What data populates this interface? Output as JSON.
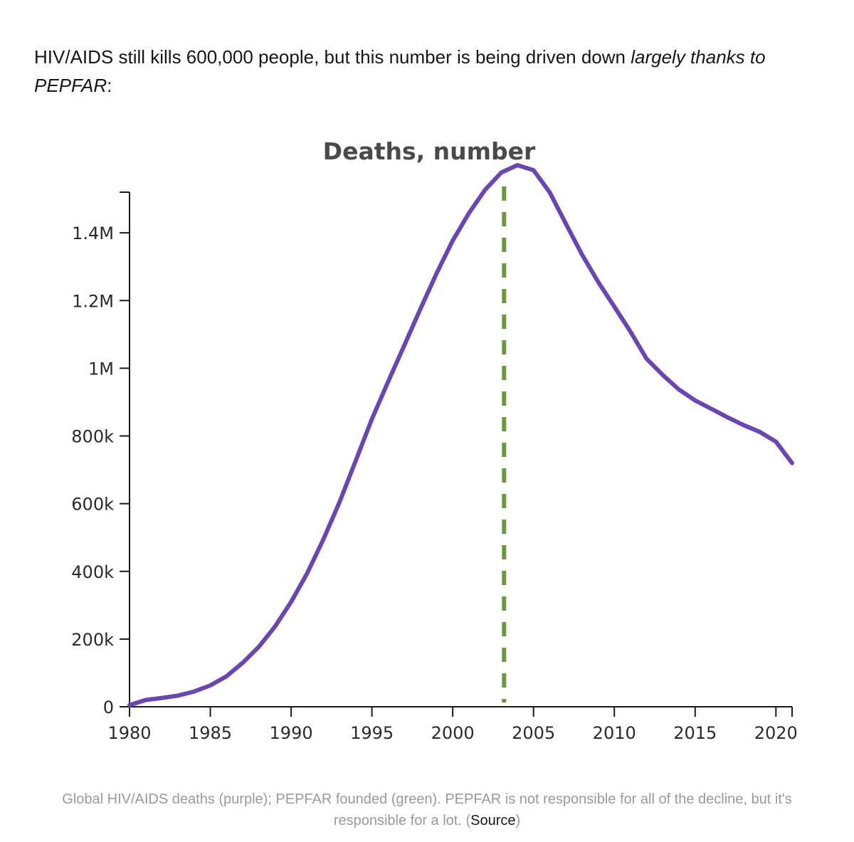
{
  "intro": {
    "text_before": "HIV/AIDS still kills 600,000 people, but this number is being driven down ",
    "text_italic": "largely thanks to PEPFAR",
    "text_after": ":"
  },
  "chart_data": {
    "type": "line",
    "title": "Deaths, number",
    "xlabel": "",
    "ylabel": "",
    "xlim": [
      1980,
      2021
    ],
    "ylim": [
      0,
      1600000
    ],
    "x_ticks": [
      1980,
      1985,
      1990,
      1995,
      2000,
      2005,
      2010,
      2015,
      2020
    ],
    "x_tick_labels": [
      "1980",
      "1985",
      "1990",
      "1995",
      "2000",
      "2005",
      "2010",
      "2015",
      "2020"
    ],
    "y_ticks": [
      0,
      200000,
      400000,
      600000,
      800000,
      1000000,
      1200000,
      1400000
    ],
    "y_tick_labels": [
      "0",
      "200k",
      "400k",
      "600k",
      "800k",
      "1M",
      "1.2M",
      "1.4M"
    ],
    "grid": false,
    "series": [
      {
        "color": "#6a46b0",
        "x": [
          1980,
          1981,
          1982,
          1983,
          1984,
          1985,
          1986,
          1987,
          1988,
          1989,
          1990,
          1991,
          1992,
          1993,
          1994,
          1995,
          1996,
          1997,
          1998,
          1999,
          2000,
          2001,
          2002,
          2003,
          2004,
          2005,
          2006,
          2007,
          2008,
          2009,
          2010,
          2011,
          2012,
          2013,
          2014,
          2015,
          2016,
          2017,
          2018,
          2019,
          2020,
          2021
        ],
        "y": [
          5000,
          20000,
          26000,
          33000,
          45000,
          63000,
          90000,
          130000,
          177000,
          237000,
          310000,
          395000,
          495000,
          605000,
          727000,
          850000,
          960000,
          1067000,
          1175000,
          1280000,
          1377000,
          1458000,
          1527000,
          1578000,
          1600000,
          1585000,
          1520000,
          1427000,
          1336000,
          1255000,
          1182000,
          1108000,
          1028000,
          980000,
          937000,
          905000,
          880000,
          855000,
          832000,
          812000,
          783000,
          720000
        ]
      }
    ],
    "marker": {
      "x": 2003,
      "color": "#6a9a3c",
      "style": "dashed"
    }
  },
  "caption": {
    "text_before": "Global HIV/AIDS deaths (purple); PEPFAR founded (green). PEPFAR is not responsible for all of the decline, but it's responsible for a lot. (",
    "source_label": "Source",
    "text_after": ")"
  }
}
